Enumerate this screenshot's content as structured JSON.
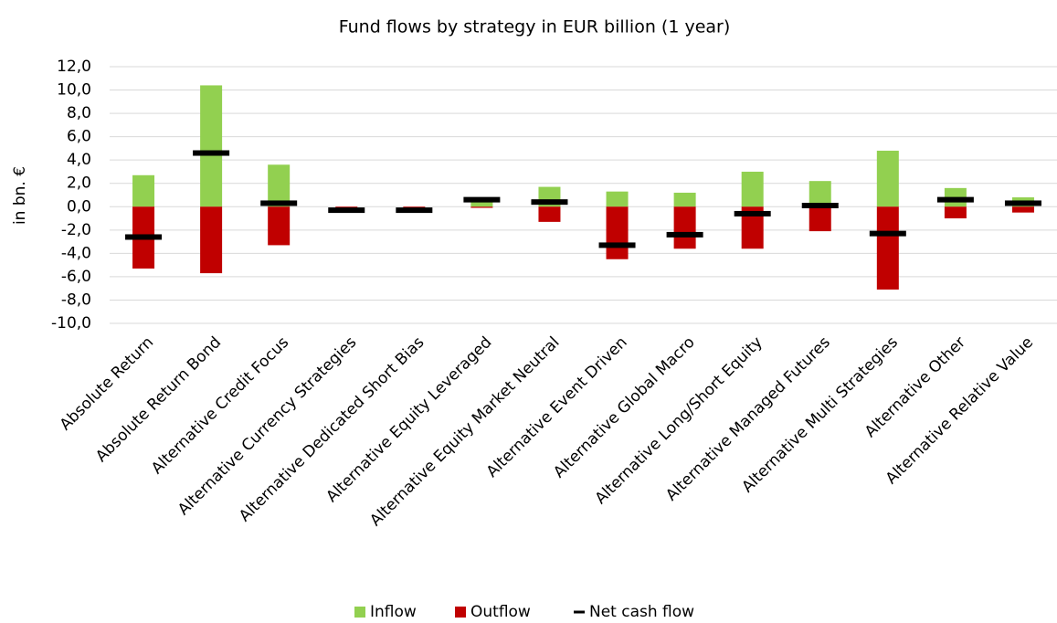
{
  "chart_data": {
    "type": "bar",
    "title": "Fund flows by strategy in EUR billion (1 year)",
    "y_label": "in bn. €",
    "categories": [
      "Absolute Return",
      "Absolute Return Bond",
      "Alternative Credit Focus",
      "Alternative Currency Strategies",
      "Alternative Dedicated Short Bias",
      "Alternative Equity Leveraged",
      "Alternative Equity Market Neutral",
      "Alternative Event Driven",
      "Alternative Global Macro",
      "Alternative Long/Short Equity",
      "Alternative Managed Futures",
      "Alternative Multi Strategies",
      "Alternative Other",
      "Alternative Relative Value"
    ],
    "series": [
      {
        "name": "Inflow",
        "color": "#92d050",
        "values": [
          2.7,
          10.4,
          3.6,
          0,
          0,
          0.6,
          1.7,
          1.3,
          1.2,
          3.0,
          2.2,
          4.8,
          1.6,
          0.8
        ]
      },
      {
        "name": "Outflow",
        "color": "#c00000",
        "values": [
          -5.3,
          -5.7,
          -3.3,
          -0.3,
          -0.3,
          -0.1,
          -1.3,
          -4.5,
          -3.6,
          -3.6,
          -2.1,
          -7.1,
          -1.0,
          -0.5
        ]
      },
      {
        "name": "Net cash flow",
        "color": "#000000",
        "marker": "dash",
        "values": [
          -2.6,
          4.6,
          0.3,
          -0.3,
          -0.3,
          0.6,
          0.4,
          -3.3,
          -2.4,
          -0.6,
          0.1,
          -2.3,
          0.6,
          0.3
        ]
      }
    ],
    "ylim": [
      -10,
      12
    ],
    "yticks": [
      {
        "value": -10,
        "label": "-10,0"
      },
      {
        "value": -8,
        "label": "-8,0"
      },
      {
        "value": -6,
        "label": "-6,0"
      },
      {
        "value": -4,
        "label": "-4,0"
      },
      {
        "value": -2,
        "label": "-2,0"
      },
      {
        "value": 0,
        "label": "0,0"
      },
      {
        "value": 2,
        "label": "2,0"
      },
      {
        "value": 4,
        "label": "4,0"
      },
      {
        "value": 6,
        "label": "6,0"
      },
      {
        "value": 8,
        "label": "8,0"
      },
      {
        "value": 10,
        "label": "10,0"
      },
      {
        "value": 12,
        "label": "12,0"
      }
    ],
    "grid": true,
    "legend": "bottom"
  }
}
